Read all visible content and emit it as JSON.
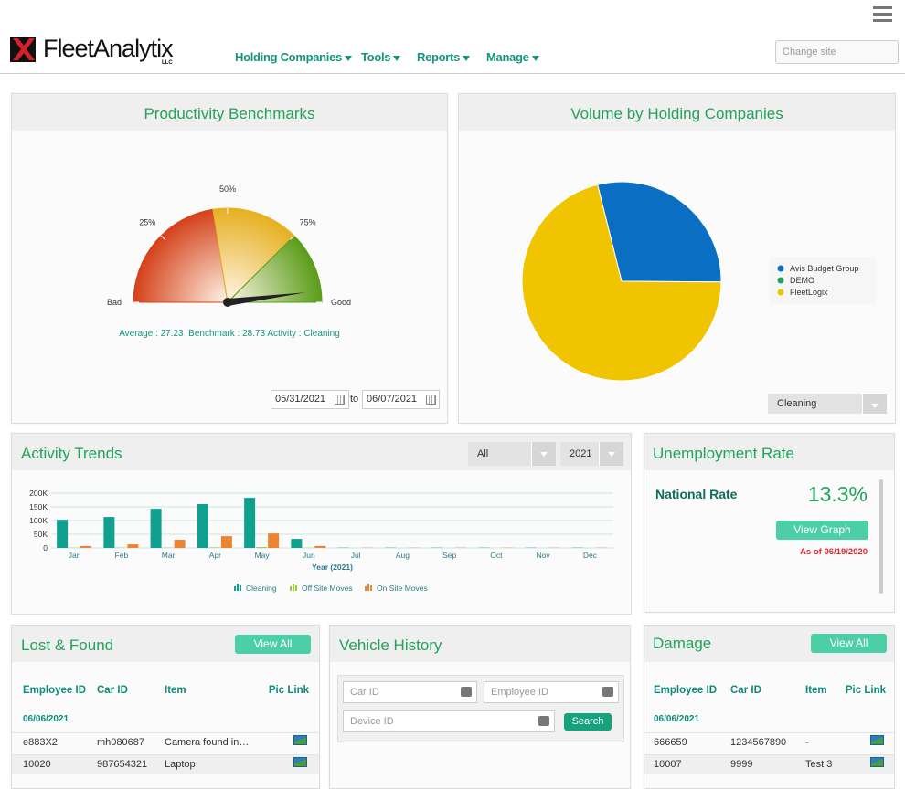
{
  "header": {
    "logo": "FleetAnalytix",
    "logo_sub": "LLC",
    "nav": [
      "Holding Companies",
      "Tools",
      "Reports",
      "Manage"
    ],
    "site_placeholder": "Change site"
  },
  "chart_data": [
    {
      "type": "gauge",
      "title": "Productivity Benchmarks",
      "ticks": [
        {
          "value": 0,
          "label": "Bad"
        },
        {
          "value": 25,
          "label": "25%"
        },
        {
          "value": 50,
          "label": "50%"
        },
        {
          "value": 75,
          "label": "75%"
        },
        {
          "value": 100,
          "label": "Good"
        }
      ],
      "lim": [
        0,
        100
      ],
      "bands": [
        {
          "from": 0,
          "to": 45,
          "color": "#d4411a"
        },
        {
          "from": 45,
          "to": 75,
          "color": "#e6b020"
        },
        {
          "from": 75,
          "to": 100,
          "color": "#5a9c18"
        }
      ],
      "value": 96,
      "summary": "Average : 27.23  Benchmark : 28.73 Activity : Cleaning",
      "date_from": "05/31/2021",
      "date_sep": "to",
      "date_to": "06/07/2021"
    },
    {
      "type": "pie",
      "title": "Volume by Holding Companies",
      "categories": [
        "Avis Budget Group",
        "DEMO",
        "FleetLogix"
      ],
      "values": [
        29,
        0,
        71
      ],
      "colors": [
        "#0a6fc2",
        "#1fa25b",
        "#f0c400"
      ],
      "filter": "Cleaning"
    },
    {
      "type": "bar",
      "title": "Activity Trends",
      "filters": [
        "All",
        "2021"
      ],
      "categories": [
        "Jan",
        "Feb",
        "Mar",
        "Apr",
        "May",
        "Jun",
        "Jul",
        "Aug",
        "Sep",
        "Oct",
        "Nov",
        "Dec"
      ],
      "x_label": "Year (2021)",
      "series": [
        {
          "name": "Cleaning",
          "color": "#0fa08f",
          "values": [
            103000,
            113000,
            143000,
            160000,
            183000,
            33000,
            1000,
            1000,
            1000,
            1000,
            1000,
            1000
          ]
        },
        {
          "name": "Off Site Moves",
          "color": "#9acd32",
          "values": [
            1000,
            1000,
            1000,
            2000,
            3000,
            500,
            0,
            0,
            0,
            0,
            0,
            0
          ]
        },
        {
          "name": "On Site Moves",
          "color": "#ee8432",
          "values": [
            7000,
            13000,
            30000,
            43000,
            53000,
            7000,
            1000,
            1000,
            1000,
            1000,
            1000,
            1000
          ]
        }
      ],
      "ylim": [
        0,
        200000
      ],
      "yticks": [
        0,
        {
          "value": 50000,
          "label": "50K"
        },
        {
          "value": 100000,
          "label": "100K"
        },
        {
          "value": 150000,
          "label": "150K"
        },
        {
          "value": 200000,
          "label": "200K"
        }
      ],
      "grid": true
    }
  ],
  "unemployment": {
    "title": "Unemployment Rate",
    "label": "National Rate",
    "rate": "13.3%",
    "button": "View Graph",
    "as_of": "As of 06/19/2020"
  },
  "lost_found": {
    "title": "Lost & Found",
    "button": "View All",
    "headers": [
      "Employee ID",
      "Car ID",
      "Item",
      "Pic Link"
    ],
    "date": "06/06/2021",
    "rows": [
      [
        "e883X2",
        "mh080687",
        "Camera found in…"
      ],
      [
        "10020",
        "987654321",
        "Laptop"
      ]
    ]
  },
  "vehicle_history": {
    "title": "Vehicle History",
    "fields": [
      "Car ID",
      "Employee ID",
      "Device ID"
    ],
    "button": "Search"
  },
  "damage": {
    "title": "Damage",
    "button": "View All",
    "headers": [
      "Employee ID",
      "Car ID",
      "Item",
      "Pic Link"
    ],
    "date": "06/06/2021",
    "rows": [
      [
        "666659",
        "1234567890",
        "-"
      ],
      [
        "10007",
        "9999",
        "Test 3"
      ]
    ]
  }
}
